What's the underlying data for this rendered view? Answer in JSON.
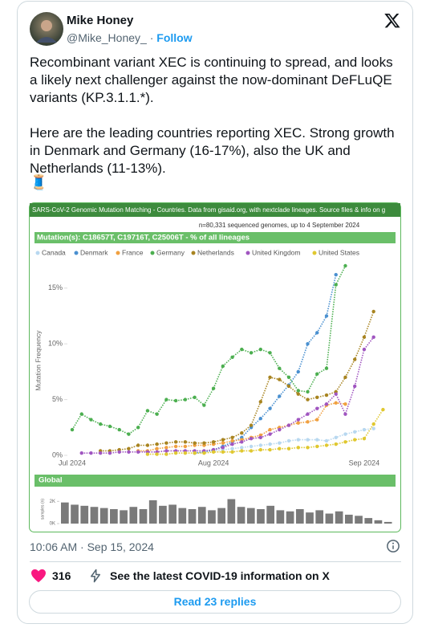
{
  "tweet": {
    "author_name": "Mike Honey",
    "handle": "@Mike_Honey_",
    "separator": "·",
    "follow": "Follow",
    "paragraphs": [
      "Recombinant variant XEC is continuing to spread, and looks a likely next challenger against the now-dominant DeFLuQE variants (KP.3.1.1.*).",
      "Here are the leading countries reporting XEC. Strong growth in Denmark and Germany (16-17%), also the UK and Netherlands (11-13%)."
    ],
    "emoji": "🧵",
    "timestamp": "10:06 AM · Sep 15, 2024",
    "likes": "316",
    "covid_link": "See the latest COVID-19 information on X",
    "replies": "Read 23 replies"
  },
  "chart_data": {
    "type": "line",
    "title": "SARS-CoV-2 Genomic Mutation Matching - Countries. Data from gisaid.org, with nextclade lineages. Source files & info on g",
    "subtitle": "n=80,331 sequenced genomes, up to 4 September 2024",
    "header": "Mutation(s): C18657T, C19716T, C25006T - % of all lineages",
    "y_label": "Mutation Frequency",
    "categories": [
      "Jul 2024",
      null,
      null,
      null,
      null,
      null,
      null,
      null,
      null,
      null,
      null,
      null,
      null,
      null,
      null,
      "Aug 2024",
      null,
      null,
      null,
      null,
      null,
      null,
      null,
      null,
      null,
      null,
      null,
      null,
      null,
      null,
      null,
      "Sep 2024",
      null,
      null
    ],
    "ylim": [
      0,
      17
    ],
    "yticks": [
      {
        "value": 0,
        "label": "0%"
      },
      {
        "value": 5,
        "label": "5%"
      },
      {
        "value": 10,
        "label": "10%"
      },
      {
        "value": 15,
        "label": "15%"
      }
    ],
    "series": [
      {
        "name": "Canada",
        "color": "#b8d8f0",
        "values": [
          null,
          null,
          null,
          null,
          null,
          null,
          null,
          null,
          null,
          null,
          null,
          null,
          null,
          null,
          0.3,
          0.4,
          0.5,
          0.6,
          0.7,
          0.8,
          0.9,
          1.0,
          1.1,
          1.3,
          1.4,
          1.4,
          1.4,
          1.3,
          1.6,
          1.9,
          2.1,
          2.3,
          2.4,
          null
        ]
      },
      {
        "name": "Denmark",
        "color": "#4a90d0",
        "values": [
          null,
          null,
          null,
          null,
          null,
          null,
          null,
          null,
          null,
          null,
          null,
          null,
          null,
          0.2,
          0.3,
          0.5,
          0.8,
          1.2,
          1.6,
          2.5,
          3.3,
          4.2,
          5.3,
          6.3,
          7.5,
          10.0,
          11.0,
          12.5,
          16.2,
          null,
          null,
          null,
          null,
          null
        ]
      },
      {
        "name": "France",
        "color": "#f0a040",
        "values": [
          null,
          null,
          null,
          null,
          null,
          null,
          null,
          0.4,
          0.4,
          0.6,
          0.7,
          0.8,
          0.8,
          0.9,
          0.9,
          1.0,
          1.1,
          1.3,
          1.4,
          1.6,
          1.8,
          2.3,
          2.5,
          2.7,
          2.9,
          3.0,
          3.2,
          4.5,
          4.7,
          4.6,
          null,
          null,
          null,
          null
        ]
      },
      {
        "name": "Germany",
        "color": "#4caf50",
        "values": [
          2.3,
          3.7,
          3.2,
          2.8,
          2.6,
          2.3,
          1.9,
          2.5,
          4.0,
          3.7,
          5.0,
          4.9,
          5.0,
          5.2,
          4.5,
          6.0,
          8.0,
          8.8,
          9.5,
          9.2,
          9.5,
          9.2,
          7.8,
          7.0,
          5.8,
          5.7,
          7.3,
          7.8,
          15.3,
          17.0,
          null,
          null,
          null,
          null
        ]
      },
      {
        "name": "Netherlands",
        "color": "#a88420",
        "values": [
          null,
          null,
          null,
          0.4,
          0.4,
          0.5,
          0.6,
          0.9,
          0.9,
          1.0,
          1.1,
          1.2,
          1.2,
          1.1,
          1.1,
          1.2,
          1.4,
          1.6,
          2.0,
          2.7,
          4.8,
          7.0,
          6.8,
          6.2,
          5.5,
          5.0,
          5.2,
          5.4,
          5.7,
          7.0,
          8.6,
          10.6,
          12.9,
          null
        ]
      },
      {
        "name": "United Kingdom",
        "color": "#a055c0",
        "values": [
          null,
          0.2,
          0.2,
          0.2,
          0.2,
          0.3,
          0.3,
          0.3,
          0.3,
          0.3,
          0.4,
          0.4,
          0.4,
          0.4,
          0.4,
          0.5,
          0.7,
          1.0,
          1.2,
          1.5,
          1.6,
          1.9,
          2.3,
          2.7,
          3.2,
          3.7,
          4.2,
          4.6,
          5.5,
          3.7,
          6.2,
          9.5,
          10.6,
          null
        ]
      },
      {
        "name": "United States",
        "color": "#e0c830",
        "values": [
          null,
          null,
          null,
          null,
          null,
          null,
          null,
          null,
          0.1,
          0.1,
          0.1,
          0.2,
          0.2,
          0.2,
          0.2,
          0.3,
          0.3,
          0.3,
          0.4,
          0.4,
          0.5,
          0.5,
          0.6,
          0.6,
          0.7,
          0.7,
          0.8,
          0.9,
          1.0,
          1.2,
          1.4,
          1.5,
          2.8,
          4.1
        ]
      }
    ],
    "global": {
      "label": "Global",
      "y_label": "samples (n)",
      "color": "#7a7a7a",
      "values": [
        1900,
        1700,
        1600,
        1500,
        1400,
        1300,
        1200,
        1500,
        1300,
        2100,
        1600,
        1700,
        1400,
        1300,
        1500,
        1200,
        1400,
        2200,
        1500,
        1400,
        1300,
        1600,
        1200,
        1100,
        1300,
        1000,
        1200,
        900,
        1100,
        800,
        700,
        500,
        300,
        150
      ],
      "ylim": [
        0,
        2600
      ],
      "yticks": [
        {
          "value": 0,
          "label": "0K"
        },
        {
          "value": 2000,
          "label": "2K"
        }
      ]
    }
  }
}
